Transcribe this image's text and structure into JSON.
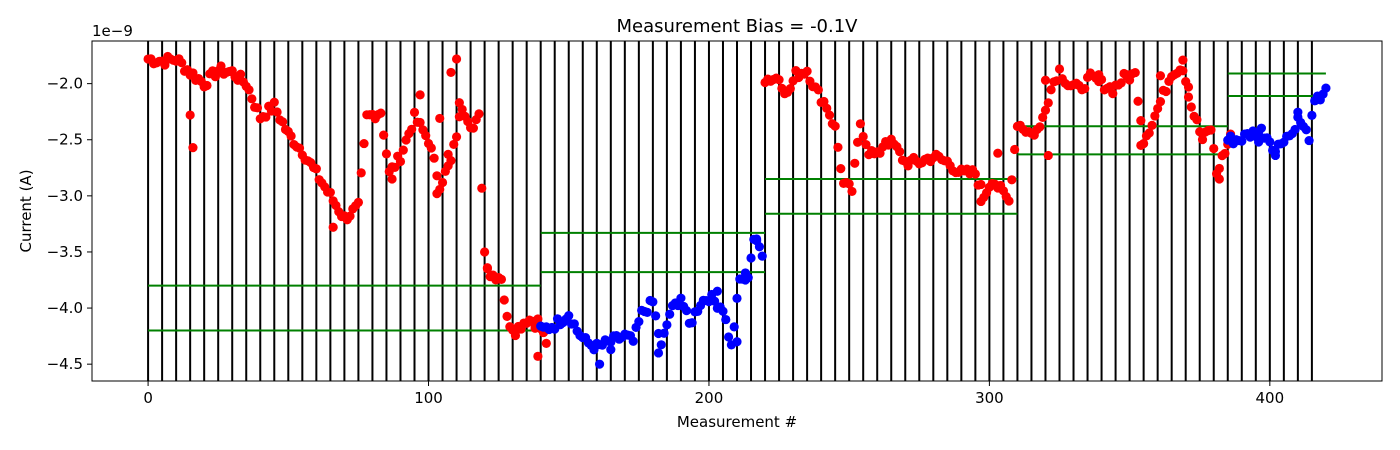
{
  "chart_data": {
    "type": "scatter",
    "title": "Measurement Bias = -0.1V",
    "xlabel": "Measurement #",
    "ylabel": "Current (A)",
    "y_offset_label": "1e−9",
    "xlim": [
      -20,
      440
    ],
    "ylim": [
      -4.65,
      -1.62
    ],
    "y_scale_exponent": -9,
    "xticks": [
      0,
      100,
      200,
      300,
      400
    ],
    "xtick_labels": [
      "0",
      "100",
      "200",
      "300",
      "400"
    ],
    "yticks": [
      -4.5,
      -4.0,
      -3.5,
      -3.0,
      -2.5,
      -2.0
    ],
    "ytick_labels": [
      "−4.5",
      "−4.0",
      "−3.5",
      "−3.0",
      "−2.5",
      "−2.0"
    ],
    "grid": false,
    "colors": {
      "red": "#ff0000",
      "blue": "#0000ff",
      "black": "#000000",
      "green": "#008000"
    },
    "vertical_lines_x": [
      0,
      5,
      10,
      15,
      20,
      25,
      30,
      35,
      40,
      45,
      50,
      55,
      60,
      65,
      70,
      75,
      80,
      85,
      90,
      95,
      100,
      105,
      110,
      115,
      120,
      125,
      130,
      135,
      140,
      145,
      150,
      155,
      160,
      165,
      170,
      175,
      180,
      185,
      190,
      195,
      200,
      205,
      210,
      215,
      220,
      225,
      230,
      235,
      240,
      245,
      250,
      255,
      260,
      265,
      270,
      275,
      280,
      285,
      290,
      295,
      300,
      305,
      310,
      315,
      320,
      325,
      330,
      335,
      340,
      345,
      350,
      355,
      360,
      365,
      370,
      375,
      380,
      385,
      390,
      395,
      400,
      405,
      410,
      415
    ],
    "horizontal_segments": [
      {
        "x": [
          0,
          140
        ],
        "y": -3.8
      },
      {
        "x": [
          0,
          140
        ],
        "y": -4.2
      },
      {
        "x": [
          140,
          220
        ],
        "y": -3.33
      },
      {
        "x": [
          140,
          220
        ],
        "y": -3.68
      },
      {
        "x": [
          220,
          310
        ],
        "y": -2.85
      },
      {
        "x": [
          220,
          310
        ],
        "y": -3.16
      },
      {
        "x": [
          310,
          385
        ],
        "y": -2.38
      },
      {
        "x": [
          310,
          385
        ],
        "y": -2.63
      },
      {
        "x": [
          385,
          420
        ],
        "y": -1.91
      },
      {
        "x": [
          385,
          420
        ],
        "y": -2.11
      }
    ],
    "series": [
      {
        "color": "red",
        "anchors": [
          [
            0,
            -1.78
          ],
          [
            5,
            -1.8
          ],
          [
            10,
            -1.78
          ],
          [
            15,
            -1.9
          ],
          [
            20,
            -2.0
          ],
          [
            25,
            -1.88
          ],
          [
            30,
            -1.9
          ],
          [
            35,
            -2.0
          ],
          [
            40,
            -2.3
          ],
          [
            45,
            -2.2
          ],
          [
            50,
            -2.45
          ],
          [
            55,
            -2.6
          ],
          [
            60,
            -2.8
          ],
          [
            65,
            -3.0
          ],
          [
            70,
            -3.2
          ],
          [
            75,
            -3.1
          ],
          [
            78,
            -2.3
          ],
          [
            83,
            -2.25
          ],
          [
            86,
            -2.8
          ],
          [
            90,
            -2.65
          ],
          [
            95,
            -2.3
          ],
          [
            100,
            -2.5
          ],
          [
            104,
            -2.9
          ],
          [
            108,
            -2.7
          ],
          [
            112,
            -2.2
          ],
          [
            116,
            -2.4
          ],
          [
            118,
            -2.3
          ],
          [
            120,
            -3.5
          ],
          [
            122,
            -3.7
          ],
          [
            126,
            -3.72
          ],
          [
            128,
            -4.1
          ],
          [
            131,
            -4.2
          ],
          [
            135,
            -4.1
          ],
          [
            139,
            -4.12
          ],
          [
            142,
            -4.3
          ]
        ],
        "scatter": [
          [
            16,
            -2.57
          ],
          [
            15,
            -2.28
          ],
          [
            110,
            -1.78
          ],
          [
            108,
            -1.9
          ],
          [
            111,
            -2.17
          ],
          [
            121,
            -3.65
          ],
          [
            107,
            -2.63
          ],
          [
            139,
            -4.43
          ],
          [
            138,
            -4.18
          ],
          [
            97,
            -2.1
          ],
          [
            66,
            -3.28
          ],
          [
            104,
            -2.31
          ],
          [
            103,
            -2.98
          ],
          [
            87,
            -2.85
          ]
        ]
      },
      {
        "color": "blue",
        "anchors": [
          [
            140,
            -4.2
          ],
          [
            145,
            -4.15
          ],
          [
            150,
            -4.05
          ],
          [
            153,
            -4.2
          ],
          [
            156,
            -4.3
          ],
          [
            160,
            -4.35
          ],
          [
            165,
            -4.3
          ],
          [
            170,
            -4.25
          ],
          [
            173,
            -4.3
          ],
          [
            176,
            -4.05
          ],
          [
            180,
            -3.95
          ],
          [
            183,
            -4.35
          ],
          [
            186,
            -4.05
          ],
          [
            190,
            -3.9
          ],
          [
            193,
            -4.15
          ],
          [
            197,
            -3.95
          ],
          [
            200,
            -3.9
          ],
          [
            205,
            -4.0
          ],
          [
            208,
            -4.35
          ],
          [
            211,
            -3.75
          ],
          [
            214,
            -3.7
          ],
          [
            216,
            -3.38
          ],
          [
            219,
            -3.5
          ]
        ],
        "scatter": [
          [
            161,
            -4.5
          ],
          [
            165,
            -4.37
          ],
          [
            182,
            -4.4
          ],
          [
            210,
            -4.3
          ],
          [
            203,
            -3.85
          ],
          [
            213,
            -3.75
          ],
          [
            217,
            -3.4
          ]
        ]
      },
      {
        "color": "red",
        "anchors": [
          [
            220,
            -1.96
          ],
          [
            225,
            -1.95
          ],
          [
            228,
            -2.1
          ],
          [
            231,
            -1.92
          ],
          [
            235,
            -1.88
          ],
          [
            238,
            -2.05
          ],
          [
            242,
            -2.2
          ],
          [
            245,
            -2.4
          ],
          [
            248,
            -2.9
          ],
          [
            251,
            -2.95
          ],
          [
            254,
            -2.35
          ],
          [
            257,
            -2.6
          ],
          [
            260,
            -2.65
          ],
          [
            263,
            -2.5
          ],
          [
            266,
            -2.55
          ],
          [
            270,
            -2.7
          ],
          [
            275,
            -2.7
          ],
          [
            280,
            -2.65
          ],
          [
            285,
            -2.7
          ],
          [
            290,
            -2.8
          ],
          [
            295,
            -2.8
          ],
          [
            298,
            -3.0
          ],
          [
            301,
            -2.85
          ],
          [
            304,
            -2.95
          ],
          [
            307,
            -3.05
          ],
          [
            310,
            -2.35
          ],
          [
            315,
            -2.45
          ],
          [
            318,
            -2.4
          ],
          [
            320,
            -2.2
          ],
          [
            323,
            -1.98
          ],
          [
            325,
            -1.88
          ],
          [
            328,
            -2.0
          ],
          [
            332,
            -2.05
          ],
          [
            336,
            -1.95
          ],
          [
            340,
            -2.0
          ],
          [
            344,
            -2.05
          ],
          [
            348,
            -1.95
          ],
          [
            352,
            -1.92
          ],
          [
            355,
            -2.5
          ],
          [
            358,
            -2.35
          ],
          [
            362,
            -2.1
          ],
          [
            365,
            -1.9
          ],
          [
            369,
            -1.85
          ],
          [
            372,
            -2.2
          ],
          [
            376,
            -2.5
          ],
          [
            379,
            -2.4
          ],
          [
            381,
            -2.8
          ],
          [
            384,
            -2.6
          ],
          [
            386,
            -2.5
          ]
        ],
        "scatter": [
          [
            369,
            -1.79
          ],
          [
            321,
            -2.64
          ],
          [
            382,
            -2.85
          ],
          [
            361,
            -1.93
          ],
          [
            371,
            -2.03
          ],
          [
            339,
            -1.92
          ],
          [
            386,
            -2.45
          ],
          [
            349,
            -1.92
          ],
          [
            354,
            -2.55
          ],
          [
            303,
            -2.62
          ],
          [
            297,
            -3.05
          ],
          [
            320,
            -1.97
          ]
        ]
      },
      {
        "color": "blue",
        "anchors": [
          [
            385,
            -2.5
          ],
          [
            389,
            -2.5
          ],
          [
            393,
            -2.45
          ],
          [
            397,
            -2.42
          ],
          [
            400,
            -2.5
          ],
          [
            402,
            -2.6
          ],
          [
            405,
            -2.48
          ],
          [
            408,
            -2.45
          ],
          [
            410,
            -2.28
          ],
          [
            412,
            -2.4
          ],
          [
            414,
            -2.47
          ],
          [
            416,
            -2.18
          ],
          [
            418,
            -2.12
          ],
          [
            420,
            -2.03
          ]
        ],
        "scatter": [
          [
            402,
            -2.64
          ],
          [
            396,
            -2.52
          ],
          [
            410,
            -2.3
          ]
        ]
      }
    ]
  }
}
